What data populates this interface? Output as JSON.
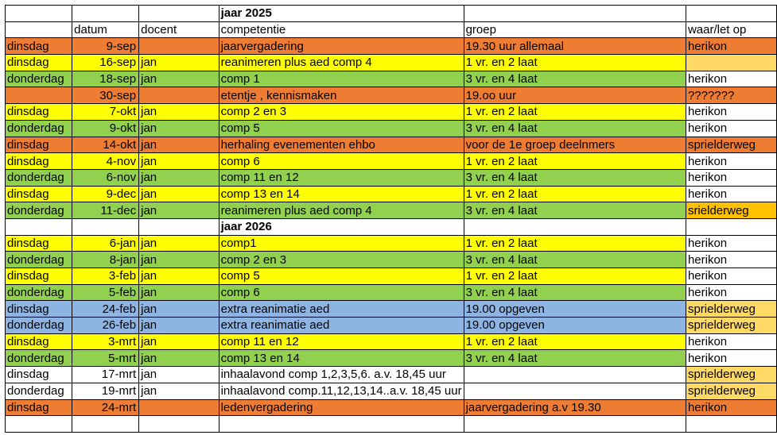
{
  "columns": [
    "",
    "datum",
    "docent",
    "competentie",
    "groep",
    "waar/let op"
  ],
  "colors": {
    "orange": "#ef7c33",
    "yellow": "#ffff00",
    "green": "#92d050",
    "blue": "#8db4e2",
    "light_orange": "#ffd966",
    "gold": "#ffc000",
    "white": "#ffffff"
  },
  "rows": [
    {
      "kind": "title",
      "cells": [
        "",
        "",
        "",
        "jaar 2025",
        "",
        ""
      ],
      "bg": [
        "white",
        "white",
        "white",
        "white",
        "white",
        "white"
      ]
    },
    {
      "kind": "header",
      "cells": [
        "",
        "datum",
        "docent",
        "competentie",
        "groep",
        "waar/let op"
      ],
      "bg": [
        "white",
        "white",
        "white",
        "white",
        "white",
        "white"
      ]
    },
    {
      "cells": [
        "dinsdag",
        "9-sep",
        "",
        "jaarvergadering",
        "19.30 uur allemaal",
        "herikon"
      ],
      "bg": [
        "orange",
        "orange",
        "orange",
        "orange",
        "orange",
        "orange"
      ]
    },
    {
      "cells": [
        "dinsdag",
        "16-sep",
        "jan",
        "reanimeren plus aed comp 4",
        "1 vr. en 2 laat",
        ""
      ],
      "bg": [
        "yellow",
        "yellow",
        "yellow",
        "yellow",
        "yellow",
        "light_orange"
      ]
    },
    {
      "cells": [
        "donderdag",
        "18-sep",
        "jan",
        "comp 1",
        "3 vr. en 4 laat",
        "herikon"
      ],
      "bg": [
        "green",
        "green",
        "green",
        "green",
        "green",
        "white"
      ]
    },
    {
      "cells": [
        "",
        "30-sep",
        "",
        "etentje , kennismaken",
        "19.oo uur",
        "???????"
      ],
      "bg": [
        "orange",
        "orange",
        "orange",
        "orange",
        "orange",
        "orange"
      ]
    },
    {
      "cells": [
        "dinsdag",
        "7-okt",
        "jan",
        "comp 2 en 3",
        "1 vr. en 2 laat",
        "herikon"
      ],
      "bg": [
        "yellow",
        "yellow",
        "yellow",
        "yellow",
        "yellow",
        "white"
      ]
    },
    {
      "cells": [
        "donderdag",
        "9-okt",
        "jan",
        "comp 5",
        "3 vr. en 4 laat",
        "herikon"
      ],
      "bg": [
        "green",
        "green",
        "green",
        "green",
        "green",
        "white"
      ]
    },
    {
      "cells": [
        "dinsdag",
        "14-okt",
        "jan",
        "herhaling evenementen ehbo",
        "voor de 1e groep deelnmers",
        "sprielderweg"
      ],
      "bg": [
        "orange",
        "orange",
        "orange",
        "orange",
        "orange",
        "orange"
      ]
    },
    {
      "cells": [
        "dinsdag",
        "4-nov",
        "jan",
        "comp 6",
        "1 vr. en 2 laat",
        "herikon"
      ],
      "bg": [
        "yellow",
        "yellow",
        "yellow",
        "yellow",
        "yellow",
        "white"
      ]
    },
    {
      "cells": [
        "donderdag",
        "6-nov",
        "jan",
        "comp 11 en 12",
        "3 vr. en 4 laat",
        "herikon"
      ],
      "bg": [
        "green",
        "green",
        "green",
        "green",
        "green",
        "white"
      ]
    },
    {
      "cells": [
        "dinsdag",
        "9-dec",
        "jan",
        "comp 13 en 14",
        "1 vr. en 2 laat",
        "herikon"
      ],
      "bg": [
        "yellow",
        "yellow",
        "yellow",
        "yellow",
        "yellow",
        "white"
      ]
    },
    {
      "cells": [
        "donderdag",
        "11-dec",
        "jan",
        "reanimeren plus aed comp 4",
        "3 vr. en 4 laat",
        "srielderweg"
      ],
      "bg": [
        "green",
        "green",
        "green",
        "green",
        "green",
        "gold"
      ]
    },
    {
      "kind": "title",
      "cells": [
        "",
        "",
        "",
        "jaar 2026",
        "",
        ""
      ],
      "bg": [
        "white",
        "white",
        "white",
        "white",
        "white",
        "white"
      ]
    },
    {
      "cells": [
        "dinsdag",
        "6-jan",
        "jan",
        "comp1",
        "1 vr. en 2 laat",
        "herikon"
      ],
      "bg": [
        "yellow",
        "yellow",
        "yellow",
        "yellow",
        "yellow",
        "white"
      ]
    },
    {
      "cells": [
        "donderdag",
        "8-jan",
        "jan",
        "comp 2 en 3",
        "3 vr. en 4 laat",
        "herikon"
      ],
      "bg": [
        "green",
        "green",
        "green",
        "green",
        "green",
        "white"
      ]
    },
    {
      "cells": [
        "dinsdag",
        "3-feb",
        "jan",
        "comp 5",
        "1 vr. en 2 laat",
        "herikon"
      ],
      "bg": [
        "yellow",
        "yellow",
        "yellow",
        "yellow",
        "yellow",
        "white"
      ]
    },
    {
      "cells": [
        "donderdag",
        "5-feb",
        "jan",
        "comp 6",
        "3 vr. en 4 laat",
        "herikon"
      ],
      "bg": [
        "green",
        "green",
        "green",
        "green",
        "green",
        "white"
      ]
    },
    {
      "cells": [
        "dinsdag",
        "24-feb",
        "jan",
        "extra reanimatie aed",
        "19.00 opgeven",
        "sprielderweg"
      ],
      "bg": [
        "blue",
        "blue",
        "blue",
        "blue",
        "blue",
        "light_orange"
      ]
    },
    {
      "cells": [
        "donderdag",
        "26-feb",
        "jan",
        "extra reanimatie aed",
        "19.00 opgeven",
        "sprielderweg"
      ],
      "bg": [
        "blue",
        "blue",
        "blue",
        "blue",
        "blue",
        "light_orange"
      ]
    },
    {
      "cells": [
        "dinsdag",
        "3-mrt",
        "jan",
        "comp 11 en 12",
        "1 vr. en 2 laat",
        "herikon"
      ],
      "bg": [
        "yellow",
        "yellow",
        "yellow",
        "yellow",
        "yellow",
        "white"
      ]
    },
    {
      "cells": [
        "donderdag",
        "5-mrt",
        "jan",
        "comp 13 en 14",
        "3 vr. en 4 laat",
        "herikon"
      ],
      "bg": [
        "green",
        "green",
        "green",
        "green",
        "green",
        "white"
      ]
    },
    {
      "cells": [
        "dinsdag",
        "17-mrt",
        "jan",
        "inhaalavond comp 1,2,3,5,6.    a.v. 18,45 uur",
        "",
        "sprielderweg"
      ],
      "bg": [
        "white",
        "white",
        "white",
        "white",
        "white",
        "light_orange"
      ]
    },
    {
      "cells": [
        "donderdag",
        "19-mrt",
        "jan",
        "inhaalavond comp.11,12,13,14..a.v. 18,45 uur",
        "",
        "sprielderweg"
      ],
      "bg": [
        "white",
        "white",
        "white",
        "white",
        "white",
        "light_orange"
      ]
    },
    {
      "cells": [
        "dinsdag",
        "24-mrt",
        "",
        "ledenvergadering",
        "jaarvergadering a.v 19.30",
        "herikon"
      ],
      "bg": [
        "orange",
        "orange",
        "orange",
        "orange",
        "orange",
        "orange"
      ]
    },
    {
      "cells": [
        "",
        "",
        "",
        "",
        "",
        ""
      ],
      "bg": [
        "white",
        "white",
        "white",
        "white",
        "white",
        "white"
      ]
    }
  ]
}
